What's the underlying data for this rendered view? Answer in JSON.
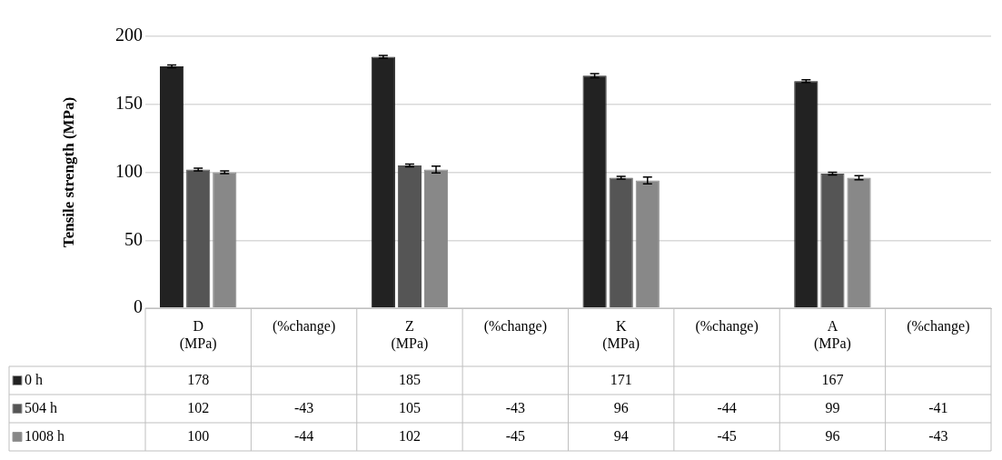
{
  "chart_data": {
    "type": "bar",
    "ylabel": "Tensile strength (MPa)",
    "categories": [
      "D (MPa)",
      "(%change)",
      "Z (MPa)",
      "(%change)",
      "K (MPa)",
      "(%change)",
      "A (MPa)",
      "(%change)"
    ],
    "series": [
      {
        "name": "0 h",
        "color": "#222222",
        "values": [
          178,
          null,
          185,
          null,
          171,
          null,
          167,
          null
        ],
        "errors": [
          1,
          null,
          1,
          null,
          1.5,
          null,
          1,
          null
        ],
        "value_labels": [
          "178",
          null,
          "185",
          null,
          "171",
          null,
          "167",
          null
        ]
      },
      {
        "name": "504 h",
        "color": "#555555",
        "values": [
          102,
          null,
          105,
          null,
          96,
          null,
          99,
          null
        ],
        "errors": [
          1,
          null,
          1,
          null,
          1,
          null,
          1,
          null
        ],
        "value_labels": [
          "102",
          "-43",
          "105",
          "-43",
          "96",
          "-44",
          "99",
          "-41"
        ]
      },
      {
        "name": "1008 h",
        "color": "#888888",
        "values": [
          100,
          null,
          102,
          null,
          94,
          null,
          96,
          null
        ],
        "errors": [
          1,
          null,
          2.5,
          null,
          2.5,
          null,
          1.5,
          null
        ],
        "value_labels": [
          "100",
          "-44",
          "102",
          "-45",
          "94",
          "-45",
          "96",
          "-43"
        ]
      }
    ],
    "ylim": [
      0,
      200
    ],
    "yticks": [
      0,
      50,
      100,
      150,
      200
    ],
    "grid": "y",
    "legend": "bottom"
  }
}
